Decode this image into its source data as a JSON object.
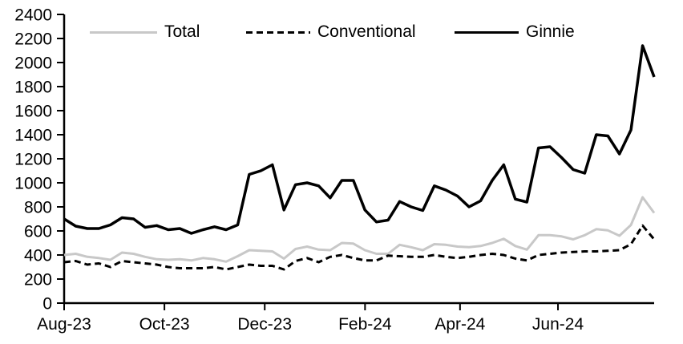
{
  "chart_data": {
    "type": "line",
    "title": "",
    "legend": {
      "position": "top",
      "entries": [
        "Total",
        "Conventional",
        "Ginnie"
      ]
    },
    "y_axis": {
      "min": 0,
      "max": 2400,
      "step": 200,
      "tick_labels": [
        "0",
        "200",
        "400",
        "600",
        "800",
        "1000",
        "1200",
        "1400",
        "1600",
        "1800",
        "2000",
        "2200",
        "2400"
      ]
    },
    "x_axis": {
      "tick_labels": [
        "Aug-23",
        "Oct-23",
        "Dec-23",
        "Feb-24",
        "Apr-24",
        "Jun-24"
      ],
      "tick_positions": [
        0,
        0.17,
        0.34,
        0.51,
        0.671,
        0.837
      ]
    },
    "series": [
      {
        "name": "Total",
        "color": "#c8c8c8",
        "line_style": "solid",
        "values": [
          400,
          410,
          385,
          375,
          360,
          420,
          410,
          385,
          365,
          360,
          365,
          355,
          375,
          365,
          345,
          390,
          440,
          435,
          430,
          370,
          450,
          470,
          445,
          440,
          500,
          495,
          440,
          410,
          410,
          485,
          465,
          440,
          490,
          485,
          470,
          465,
          475,
          500,
          535,
          475,
          445,
          565,
          565,
          555,
          530,
          565,
          615,
          605,
          560,
          650,
          880,
          750
        ]
      },
      {
        "name": "Conventional",
        "color": "#000000",
        "line_style": "dashed",
        "values": [
          340,
          350,
          320,
          330,
          300,
          350,
          340,
          330,
          320,
          300,
          290,
          290,
          290,
          300,
          280,
          300,
          320,
          310,
          310,
          280,
          350,
          375,
          340,
          385,
          400,
          375,
          355,
          355,
          395,
          390,
          385,
          385,
          400,
          385,
          375,
          385,
          400,
          410,
          400,
          370,
          355,
          400,
          410,
          420,
          425,
          430,
          430,
          435,
          440,
          490,
          645,
          530
        ]
      },
      {
        "name": "Ginnie",
        "color": "#000000",
        "line_style": "solid",
        "values": [
          700,
          640,
          620,
          620,
          650,
          710,
          700,
          630,
          645,
          610,
          620,
          580,
          610,
          635,
          610,
          650,
          1070,
          1100,
          1150,
          775,
          985,
          1000,
          975,
          875,
          1020,
          1020,
          775,
          675,
          690,
          845,
          800,
          770,
          975,
          940,
          890,
          800,
          850,
          1020,
          1150,
          865,
          840,
          1290,
          1300,
          1210,
          1110,
          1080,
          1400,
          1390,
          1240,
          1440,
          2140,
          1880
        ]
      }
    ]
  }
}
